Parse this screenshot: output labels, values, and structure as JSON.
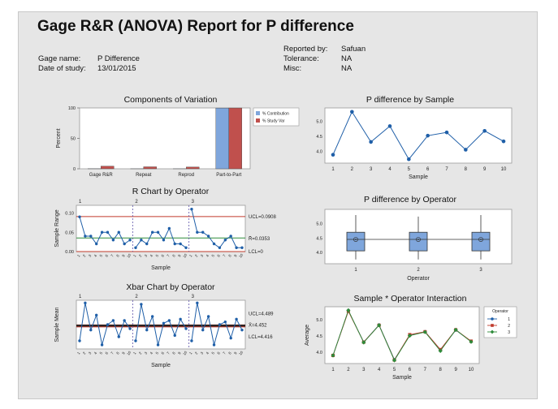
{
  "report": {
    "title": "Gage R&R (ANOVA) Report for P difference",
    "gage_name_label": "Gage name:",
    "gage_name_value": "P Difference",
    "date_label": "Date of study:",
    "date_value": "13/01/2015",
    "reported_by_label": "Reported by:",
    "reported_by_value": "Safuan",
    "tolerance_label": "Tolerance:",
    "tolerance_value": "NA",
    "misc_label": "Misc:",
    "misc_value": "NA"
  },
  "chart_data": [
    {
      "id": "components",
      "type": "bar",
      "title": "Components of Variation",
      "ylabel": "Percent",
      "categories": [
        "Gage R&R",
        "Repeat",
        "Reprod",
        "Part-to-Part"
      ],
      "series": [
        {
          "name": "% Contribution",
          "color": "#7fa6dc",
          "values": [
            0.2,
            0.1,
            0.1,
            99.8
          ]
        },
        {
          "name": "% Study Var",
          "color": "#c0504d",
          "values": [
            4.4,
            3.3,
            2.9,
            99.9
          ]
        }
      ],
      "ylim": [
        0,
        100
      ],
      "yticks": [
        0,
        50,
        100
      ]
    },
    {
      "id": "r_chart",
      "type": "line",
      "title": "R Chart by Operator",
      "xlabel": "Sample",
      "ylabel": "Sample Range",
      "operators": [
        "1",
        "2",
        "3"
      ],
      "sample_tick_labels": [
        "1",
        "2",
        "3",
        "4",
        "5",
        "6",
        "7",
        "8",
        "9",
        "10"
      ],
      "values": [
        0.09,
        0.04,
        0.04,
        0.02,
        0.05,
        0.05,
        0.03,
        0.05,
        0.02,
        0.03,
        0.01,
        0.03,
        0.02,
        0.05,
        0.05,
        0.03,
        0.06,
        0.02,
        0.02,
        0.01,
        0.11,
        0.05,
        0.05,
        0.04,
        0.02,
        0.01,
        0.03,
        0.04,
        0.01,
        0.01
      ],
      "ylim": [
        0,
        0.12
      ],
      "yticks": [
        {
          "value": 0.0,
          "label": "0.00"
        },
        {
          "value": 0.05,
          "label": "0.05"
        },
        {
          "value": 0.1,
          "label": "0.10"
        }
      ],
      "ucl": 0.0908,
      "center": 0.0353,
      "lcl": 0,
      "ucl_label": "UCL=0.0908",
      "center_label": "R̄=0.0353",
      "lcl_label": "LCL=0"
    },
    {
      "id": "xbar_chart",
      "type": "line",
      "title": "Xbar Chart by Operator",
      "xlabel": "Sample",
      "ylabel": "Sample Mean",
      "operators": [
        "1",
        "2",
        "3"
      ],
      "sample_tick_labels": [
        "1",
        "2",
        "3",
        "4",
        "5",
        "6",
        "7",
        "8",
        "9",
        "10"
      ],
      "values": [
        3.9,
        5.3,
        4.3,
        4.85,
        3.75,
        4.5,
        4.65,
        4.05,
        4.65,
        4.35,
        3.9,
        5.25,
        4.3,
        4.8,
        3.75,
        4.55,
        4.65,
        4.1,
        4.7,
        4.35,
        3.9,
        5.3,
        4.3,
        4.8,
        3.75,
        4.5,
        4.6,
        4.0,
        4.7,
        4.3
      ],
      "ylim": [
        3.6,
        5.4
      ],
      "ucl": 4.489,
      "center": 4.452,
      "lcl": 4.416,
      "ucl_label": "UCL=4.489",
      "center_label": "X̄=4.452",
      "lcl_label": "LCL=4.416"
    },
    {
      "id": "by_sample",
      "type": "line",
      "title": "P difference by Sample",
      "xlabel": "Sample",
      "x": [
        1,
        2,
        3,
        4,
        5,
        6,
        7,
        8,
        9,
        10
      ],
      "values": [
        3.88,
        5.32,
        4.31,
        4.84,
        3.73,
        4.52,
        4.63,
        4.05,
        4.68,
        4.33
      ],
      "ylim": [
        3.6,
        5.45
      ],
      "yticks": [
        {
          "value": 4.0,
          "label": "4.0"
        },
        {
          "value": 4.5,
          "label": "4.5"
        },
        {
          "value": 5.0,
          "label": "5.0"
        }
      ]
    },
    {
      "id": "by_operator",
      "type": "boxplot",
      "title": "P difference by Operator",
      "xlabel": "Operator",
      "categories": [
        "1",
        "2",
        "3"
      ],
      "boxes": [
        {
          "min": 3.75,
          "q1": 4.05,
          "median": 4.45,
          "q3": 4.7,
          "max": 5.3,
          "mean": 4.45
        },
        {
          "min": 3.75,
          "q1": 4.05,
          "median": 4.45,
          "q3": 4.7,
          "max": 5.25,
          "mean": 4.45
        },
        {
          "min": 3.75,
          "q1": 4.05,
          "median": 4.45,
          "q3": 4.7,
          "max": 5.3,
          "mean": 4.45
        }
      ],
      "ylim": [
        3.6,
        5.5
      ],
      "yticks": [
        {
          "value": 4.0,
          "label": "4.0"
        },
        {
          "value": 4.5,
          "label": "4.5"
        },
        {
          "value": 5.0,
          "label": "5.0"
        }
      ]
    },
    {
      "id": "interaction",
      "type": "line",
      "title": "Sample * Operator Interaction",
      "xlabel": "Sample",
      "ylabel": "Average",
      "x": [
        1,
        2,
        3,
        4,
        5,
        6,
        7,
        8,
        9,
        10
      ],
      "legend_title": "Operator",
      "series": [
        {
          "name": "1",
          "color": "#1f5fa8",
          "marker": "circle",
          "values": [
            3.9,
            5.28,
            4.31,
            4.84,
            3.77,
            4.52,
            4.63,
            4.07,
            4.68,
            4.33
          ]
        },
        {
          "name": "2",
          "color": "#c0392b",
          "marker": "square",
          "values": [
            3.9,
            5.26,
            4.31,
            4.83,
            3.76,
            4.54,
            4.63,
            4.08,
            4.69,
            4.34
          ]
        },
        {
          "name": "3",
          "color": "#2e8b3a",
          "marker": "diamond",
          "values": [
            3.9,
            5.29,
            4.3,
            4.83,
            3.75,
            4.51,
            4.62,
            4.04,
            4.69,
            4.32
          ]
        }
      ],
      "ylim": [
        3.65,
        5.4
      ],
      "yticks": [
        {
          "value": 4.0,
          "label": "4.0"
        },
        {
          "value": 4.5,
          "label": "4.5"
        },
        {
          "value": 5.0,
          "label": "5.0"
        }
      ]
    }
  ]
}
